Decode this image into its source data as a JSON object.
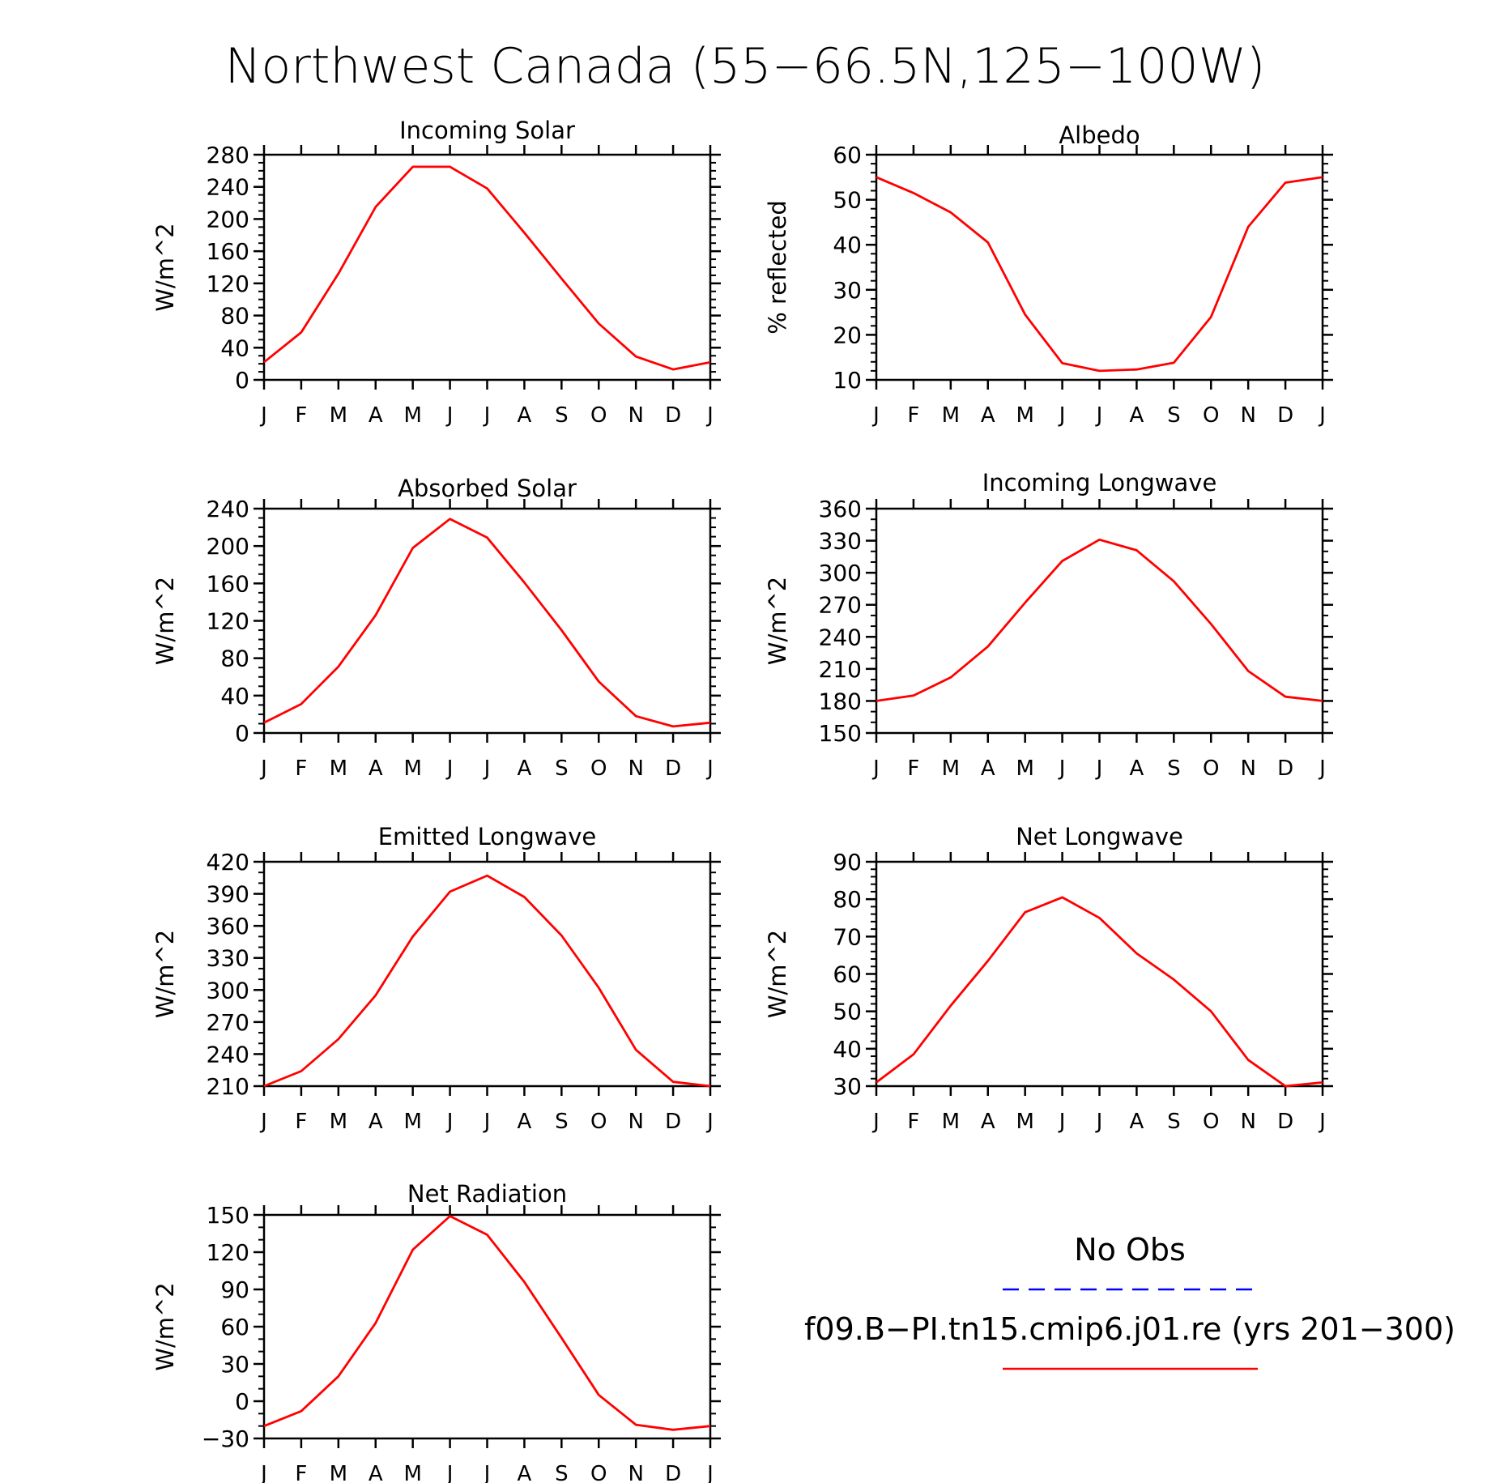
{
  "title": "Northwest Canada (55−66.5N,125−100W)",
  "month_labels": [
    "J",
    "F",
    "M",
    "A",
    "M",
    "J",
    "J",
    "A",
    "S",
    "O",
    "N",
    "D",
    "J"
  ],
  "colors": {
    "model": "#ff0000",
    "obs": "#0000ff",
    "axis": "#000000"
  },
  "legend": {
    "obs_label": "No Obs",
    "model_label": "f09.B−PI.tn15.cmip6.j01.re (yrs 201−300)"
  },
  "chart_data": [
    {
      "type": "line",
      "title": "Incoming Solar",
      "ylabel": "W/m^2",
      "ylim": [
        0,
        280
      ],
      "yticks": [
        0,
        40,
        80,
        120,
        160,
        200,
        240,
        280
      ],
      "yminor": 10,
      "categories": [
        "J",
        "F",
        "M",
        "A",
        "M",
        "J",
        "J",
        "A",
        "S",
        "O",
        "N",
        "D",
        "J"
      ],
      "series": [
        {
          "values": [
            22,
            59,
            132,
            215,
            265,
            265,
            238,
            183,
            126,
            70,
            29,
            13,
            22
          ]
        }
      ]
    },
    {
      "type": "line",
      "title": "Albedo",
      "ylabel": "% reflected",
      "ylim": [
        10,
        60
      ],
      "yticks": [
        10,
        20,
        30,
        40,
        50,
        60
      ],
      "yminor": 2,
      "categories": [
        "J",
        "F",
        "M",
        "A",
        "M",
        "J",
        "J",
        "A",
        "S",
        "O",
        "N",
        "D",
        "J"
      ],
      "series": [
        {
          "values": [
            55,
            51.5,
            47.2,
            40.5,
            24.5,
            13.7,
            12,
            12.3,
            13.8,
            24,
            44,
            53.8,
            55
          ]
        }
      ]
    },
    {
      "type": "line",
      "title": "Absorbed Solar",
      "ylabel": "W/m^2",
      "ylim": [
        0,
        240
      ],
      "yticks": [
        0,
        40,
        80,
        120,
        160,
        200,
        240
      ],
      "yminor": 10,
      "categories": [
        "J",
        "F",
        "M",
        "A",
        "M",
        "J",
        "J",
        "A",
        "S",
        "O",
        "N",
        "D",
        "J"
      ],
      "series": [
        {
          "values": [
            11,
            31,
            71,
            126,
            198,
            229,
            209,
            161,
            110,
            55,
            18,
            7,
            11
          ]
        }
      ]
    },
    {
      "type": "line",
      "title": "Incoming Longwave",
      "ylabel": "W/m^2",
      "ylim": [
        150,
        360
      ],
      "yticks": [
        150,
        180,
        210,
        240,
        270,
        300,
        330,
        360
      ],
      "yminor": 10,
      "categories": [
        "J",
        "F",
        "M",
        "A",
        "M",
        "J",
        "J",
        "A",
        "S",
        "O",
        "N",
        "D",
        "J"
      ],
      "series": [
        {
          "values": [
            180,
            185,
            202,
            231,
            272,
            311,
            331,
            321,
            292,
            252,
            208,
            184,
            180
          ]
        }
      ]
    },
    {
      "type": "line",
      "title": "Emitted Longwave",
      "ylabel": "W/m^2",
      "ylim": [
        210,
        420
      ],
      "yticks": [
        210,
        240,
        270,
        300,
        330,
        360,
        390,
        420
      ],
      "yminor": 10,
      "categories": [
        "J",
        "F",
        "M",
        "A",
        "M",
        "J",
        "J",
        "A",
        "S",
        "O",
        "N",
        "D",
        "J"
      ],
      "series": [
        {
          "values": [
            210,
            224,
            254,
            295,
            350,
            392,
            407,
            387,
            351,
            302,
            244,
            214,
            210
          ]
        }
      ]
    },
    {
      "type": "line",
      "title": "Net Longwave",
      "ylabel": "W/m^2",
      "ylim": [
        30,
        90
      ],
      "yticks": [
        30,
        40,
        50,
        60,
        70,
        80,
        90
      ],
      "yminor": 2,
      "categories": [
        "J",
        "F",
        "M",
        "A",
        "M",
        "J",
        "J",
        "A",
        "S",
        "O",
        "N",
        "D",
        "J"
      ],
      "series": [
        {
          "values": [
            31,
            38.5,
            51.5,
            63.5,
            76.5,
            80.5,
            75,
            65.5,
            58.5,
            50,
            37,
            30,
            31
          ]
        }
      ]
    },
    {
      "type": "line",
      "title": "Net Radiation",
      "ylabel": "W/m^2",
      "ylim": [
        -30,
        150
      ],
      "yticks": [
        -30,
        0,
        30,
        60,
        90,
        120,
        150
      ],
      "yminor": 10,
      "categories": [
        "J",
        "F",
        "M",
        "A",
        "M",
        "J",
        "J",
        "A",
        "S",
        "O",
        "N",
        "D",
        "J"
      ],
      "series": [
        {
          "values": [
            -20,
            -8,
            20,
            63,
            122,
            149,
            134,
            96,
            51,
            5,
            -19,
            -23,
            -20
          ]
        }
      ]
    }
  ]
}
